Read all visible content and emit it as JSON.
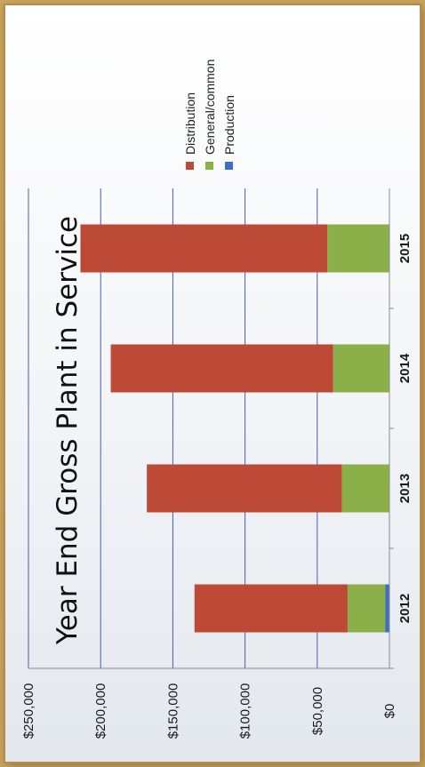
{
  "chart_data": {
    "type": "bar",
    "stacked": true,
    "orientation": "horizontal",
    "title": "Year End Gross Plant in Service",
    "categories": [
      "2012",
      "2013",
      "2014",
      "2015"
    ],
    "series": [
      {
        "name": "Production",
        "values": [
          3000,
          0,
          0,
          0
        ],
        "color": "#3f6fc1"
      },
      {
        "name": "General/common",
        "values": [
          26000,
          33000,
          39000,
          43000
        ],
        "color": "#8bb04a"
      },
      {
        "name": "Distribution",
        "values": [
          106000,
          135000,
          154000,
          171000
        ],
        "color": "#bc4a36"
      }
    ],
    "ylim": [
      0,
      250000
    ],
    "ticks": [
      "$0",
      "$50,000",
      "$100,000",
      "$150,000",
      "$200,000",
      "$250,000"
    ],
    "tick_values": [
      0,
      50000,
      100000,
      150000,
      200000,
      250000
    ],
    "legend_order": [
      "Distribution",
      "General/common",
      "Production"
    ],
    "legend_position": "top-right",
    "grid": true,
    "gridline_color": "#4a5ea8"
  }
}
